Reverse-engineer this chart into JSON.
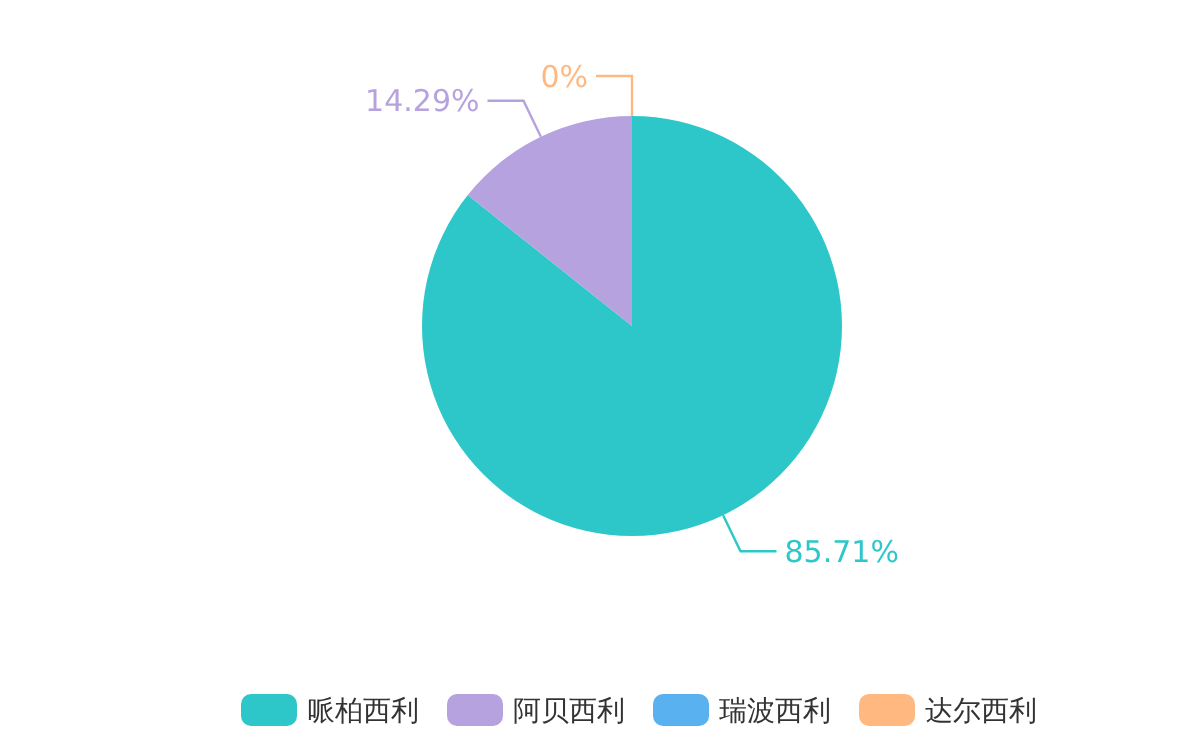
{
  "chart_data": {
    "type": "pie",
    "categories": [
      "哌柏西利",
      "阿贝西利",
      "瑞波西利",
      "达尔西利"
    ],
    "values": [
      85.71,
      14.29,
      0,
      0
    ],
    "colors": [
      "#2ec7c9",
      "#b6a2de",
      "#5ab1ef",
      "#ffb980"
    ],
    "value_labels": [
      "85.71%",
      "14.29%",
      null,
      "0%"
    ],
    "legend": "bottom"
  }
}
